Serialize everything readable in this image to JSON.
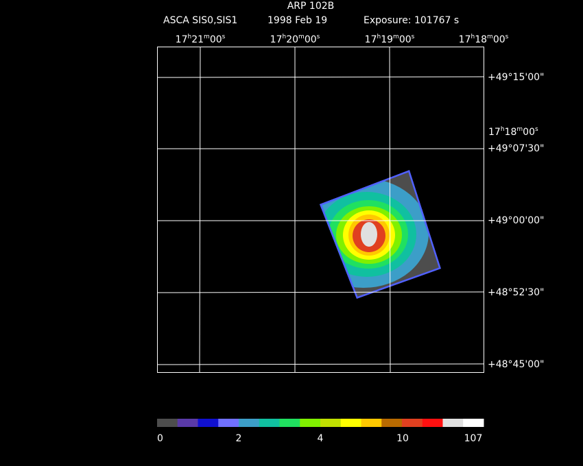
{
  "header": {
    "title": "ARP 102B",
    "instrument": "ASCA SIS0,SIS1",
    "date": "1998 Feb 19",
    "exposure": "Exposure: 101767 s"
  },
  "ra_labels": [
    [
      "17",
      "h",
      "21",
      "m",
      "00",
      "s"
    ],
    [
      "17",
      "h",
      "20",
      "m",
      "00",
      "s"
    ],
    [
      "17",
      "h",
      "19",
      "m",
      "00",
      "s"
    ],
    [
      "17",
      "h",
      "18",
      "m",
      "00",
      "s"
    ]
  ],
  "ra_side_label": [
    "17",
    "h",
    "18",
    "m",
    "00",
    "s"
  ],
  "dec_labels": [
    "+49°15'00\"",
    "+49°07'30\"",
    "+49°00'00\"",
    "+48°52'30\"",
    "+48°45'00\""
  ],
  "colorbar": {
    "ticks": [
      "0",
      "2",
      "4",
      "10",
      "107"
    ],
    "colors": [
      "#4d4d4d",
      "#5a3aa8",
      "#1010d0",
      "#7070ff",
      "#3c9ec8",
      "#10c0a0",
      "#20e060",
      "#80f000",
      "#c0e000",
      "#ffff00",
      "#ffc800",
      "#b86a00",
      "#e04020",
      "#ff1010",
      "#e0e0e0",
      "#ffffff"
    ]
  }
}
